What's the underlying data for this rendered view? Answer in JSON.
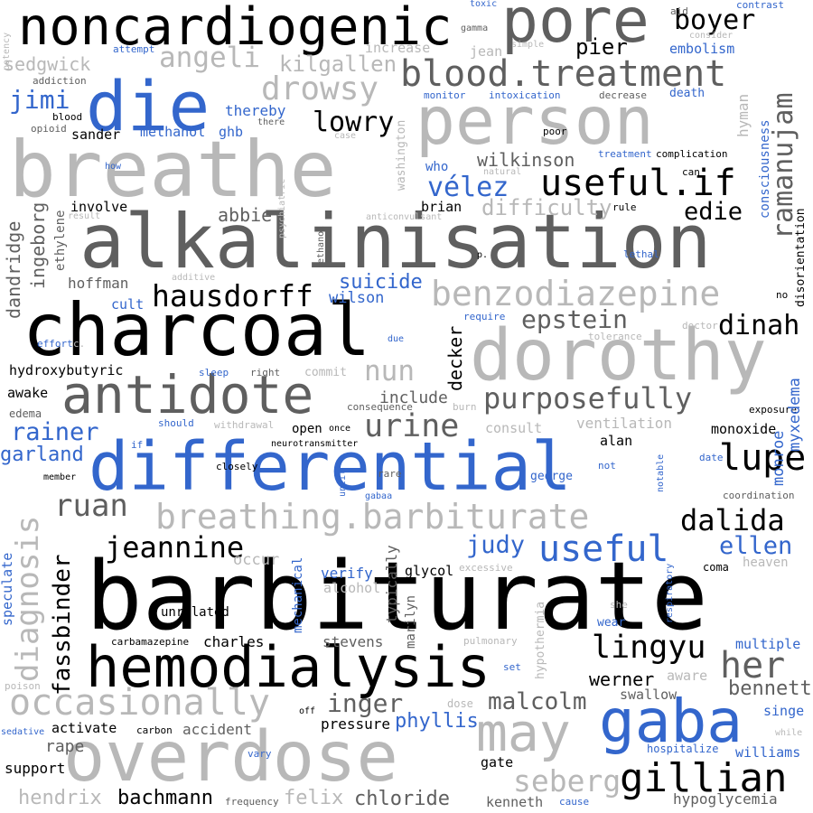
{
  "words": {
    "barbiturate": "barbiturate",
    "alkalinisation": "alkalinisation",
    "breathe": "breathe",
    "charcoal": "charcoal",
    "differential": "differential",
    "overdose": "overdose",
    "person": "person",
    "dorothy": "dorothy",
    "noncardiogenic": "noncardiogenic",
    "hemodialysis": "hemodialysis",
    "pore": "pore",
    "antidote": "antidote",
    "die": "die",
    "gaba": "gaba",
    "may": "may",
    "blood_treatment": "blood.treatment",
    "benzodiazepine": "benzodiazepine",
    "breathing_barbiturate": "breathing.barbiturate",
    "occasionally": "occasionally",
    "useful_if": "useful.if",
    "hausdorff": "hausdorff",
    "gillian": "gillian",
    "purposefully": "purposefully",
    "useful": "useful",
    "jeannine": "jeannine",
    "urine": "urine",
    "dalida": "dalida",
    "lingyu": "lingyu",
    "her": "her",
    "lupe": "lupe",
    "ramanujam": "ramanujam",
    "boyer": "boyer",
    "diagnosis": "diagnosis",
    "fassbinder": "fassbinder",
    "ruan": "ruan",
    "drowsy": "drowsy",
    "angeli": "angeli",
    "epstein": "epstein",
    "seberg": "seberg",
    "velez": "vélez",
    "nun": "nun",
    "lowry": "lowry",
    "dinah": "dinah",
    "edie": "edie",
    "judy": "judy",
    "ellen": "ellen",
    "inger": "inger",
    "malcolm": "malcolm",
    "phyllis": "phyllis",
    "jimi": "jimi",
    "rainer": "rainer",
    "garland": "garland",
    "suicide": "suicide",
    "difficulty": "difficulty",
    "ingeborg": "ingeborg",
    "dandridge": "dandridge",
    "pier": "pier",
    "kilgallen": "kilgallen",
    "sedgwick": "sedgwick",
    "bachmann": "bachmann",
    "hendrix": "hendrix",
    "felix": "felix",
    "chloride": "chloride",
    "bennett": "bennett",
    "wilkinson": "wilkinson",
    "decker": "decker",
    "monroe": "monroe",
    "myxedema": "myxedema",
    "werner": "werner",
    "consciousness": "consciousness",
    "hyman": "hyman",
    "washington": "washington",
    "abbie": "abbie",
    "hoffman": "hoffman",
    "wilson": "wilson",
    "include": "include",
    "ventilation": "ventilation",
    "marilyn": "marilyn",
    "stevens": "stevens",
    "charles": "charles",
    "accident": "accident",
    "pressure": "pressure",
    "rape": "rape",
    "support": "support",
    "activate": "activate",
    "kenneth": "kenneth",
    "gate": "gate",
    "hypoglycemia": "hypoglycemia",
    "swallow": "swallow",
    "aware": "aware",
    "multiple": "multiple",
    "singe": "singe",
    "williams": "williams",
    "hospitalize": "hospitalize",
    "heaven": "heaven",
    "coma": "coma",
    "coordination": "coordination",
    "verify": "verify",
    "alcohol": "alcohol",
    "occur": "occur",
    "unrelated": "unrelated",
    "glycol": "glycol",
    "typically": "typically",
    "mechanical": "mechanical",
    "speculate": "speculate",
    "involve": "involve",
    "ethylene": "ethylene",
    "hydroxybutyric": "hydroxybutyric",
    "awake": "awake",
    "edema": "edema",
    "consult": "consult",
    "alan": "alan",
    "monoxide": "monoxide",
    "exposure": "exposure",
    "open": "open",
    "brian": "brian",
    "methanol": "methanol",
    "ghb": "ghb",
    "sander": "sander",
    "thereby": "thereby",
    "who": "who",
    "cult": "cult",
    "george": "george",
    "disorientation": "disorientation",
    "embolism": "embolism",
    "increase": "increase",
    "jean": "jean",
    "death": "death",
    "intoxication": "intoxication",
    "monitor": "monitor",
    "decrease": "decrease",
    "treatment": "treatment",
    "complication": "complication",
    "poor": "poor",
    "can": "can",
    "rule": "rule",
    "lethal": "lethal",
    "require": "require",
    "doctor": "doctor",
    "tolerance": "tolerance",
    "commit": "commit",
    "right": "right",
    "sleep": "sleep",
    "consequence": "consequence",
    "burn": "burn",
    "withdrawal": "withdrawal",
    "should": "should",
    "neurotransmitter": "neurotransmitter",
    "once": "once",
    "closely": "closely",
    "rare": "rare",
    "until": "until",
    "gabaa": "gabaa",
    "not": "not",
    "notable": "notable",
    "date": "date",
    "excessive": "excessive",
    "respiratory": "respiratory",
    "hypothermia": "hypothermia",
    "wear": "wear",
    "she": "she",
    "pulmonary": "pulmonary",
    "set": "set",
    "dose": "dose",
    "off": "off",
    "carbon": "carbon",
    "sedative": "sedative",
    "vary": "vary",
    "frequency": "frequency",
    "cause": "cause",
    "poison": "poison",
    "carbamazepine": "carbamazepine",
    "member": "member",
    "if": "if",
    "effort": "effort",
    "due": "due",
    "p": "p.",
    "no": "no",
    "anticonvulsant": "anticonvulsant",
    "result": "result",
    "psychiatric": "psychiatric",
    "ethanol": "ethanol",
    "additive": "additive",
    "natural": "natural",
    "how": "how",
    "blood": "blood",
    "opioid": "opioid",
    "there": "there",
    "case": "case",
    "addiction": "addiction",
    "attempt": "attempt",
    "potency": "potency",
    "toxic": "toxic",
    "aid": "aid",
    "contrast": "contrast",
    "consider": "consider",
    "gamma": "gamma",
    "simple": "simple",
    "while": "while",
    "c": "c."
  },
  "colors": {
    "black": "#000000",
    "dark_gray": "#5f5f5f",
    "light_gray": "#b8b8b8",
    "blue": "#3366cc"
  }
}
